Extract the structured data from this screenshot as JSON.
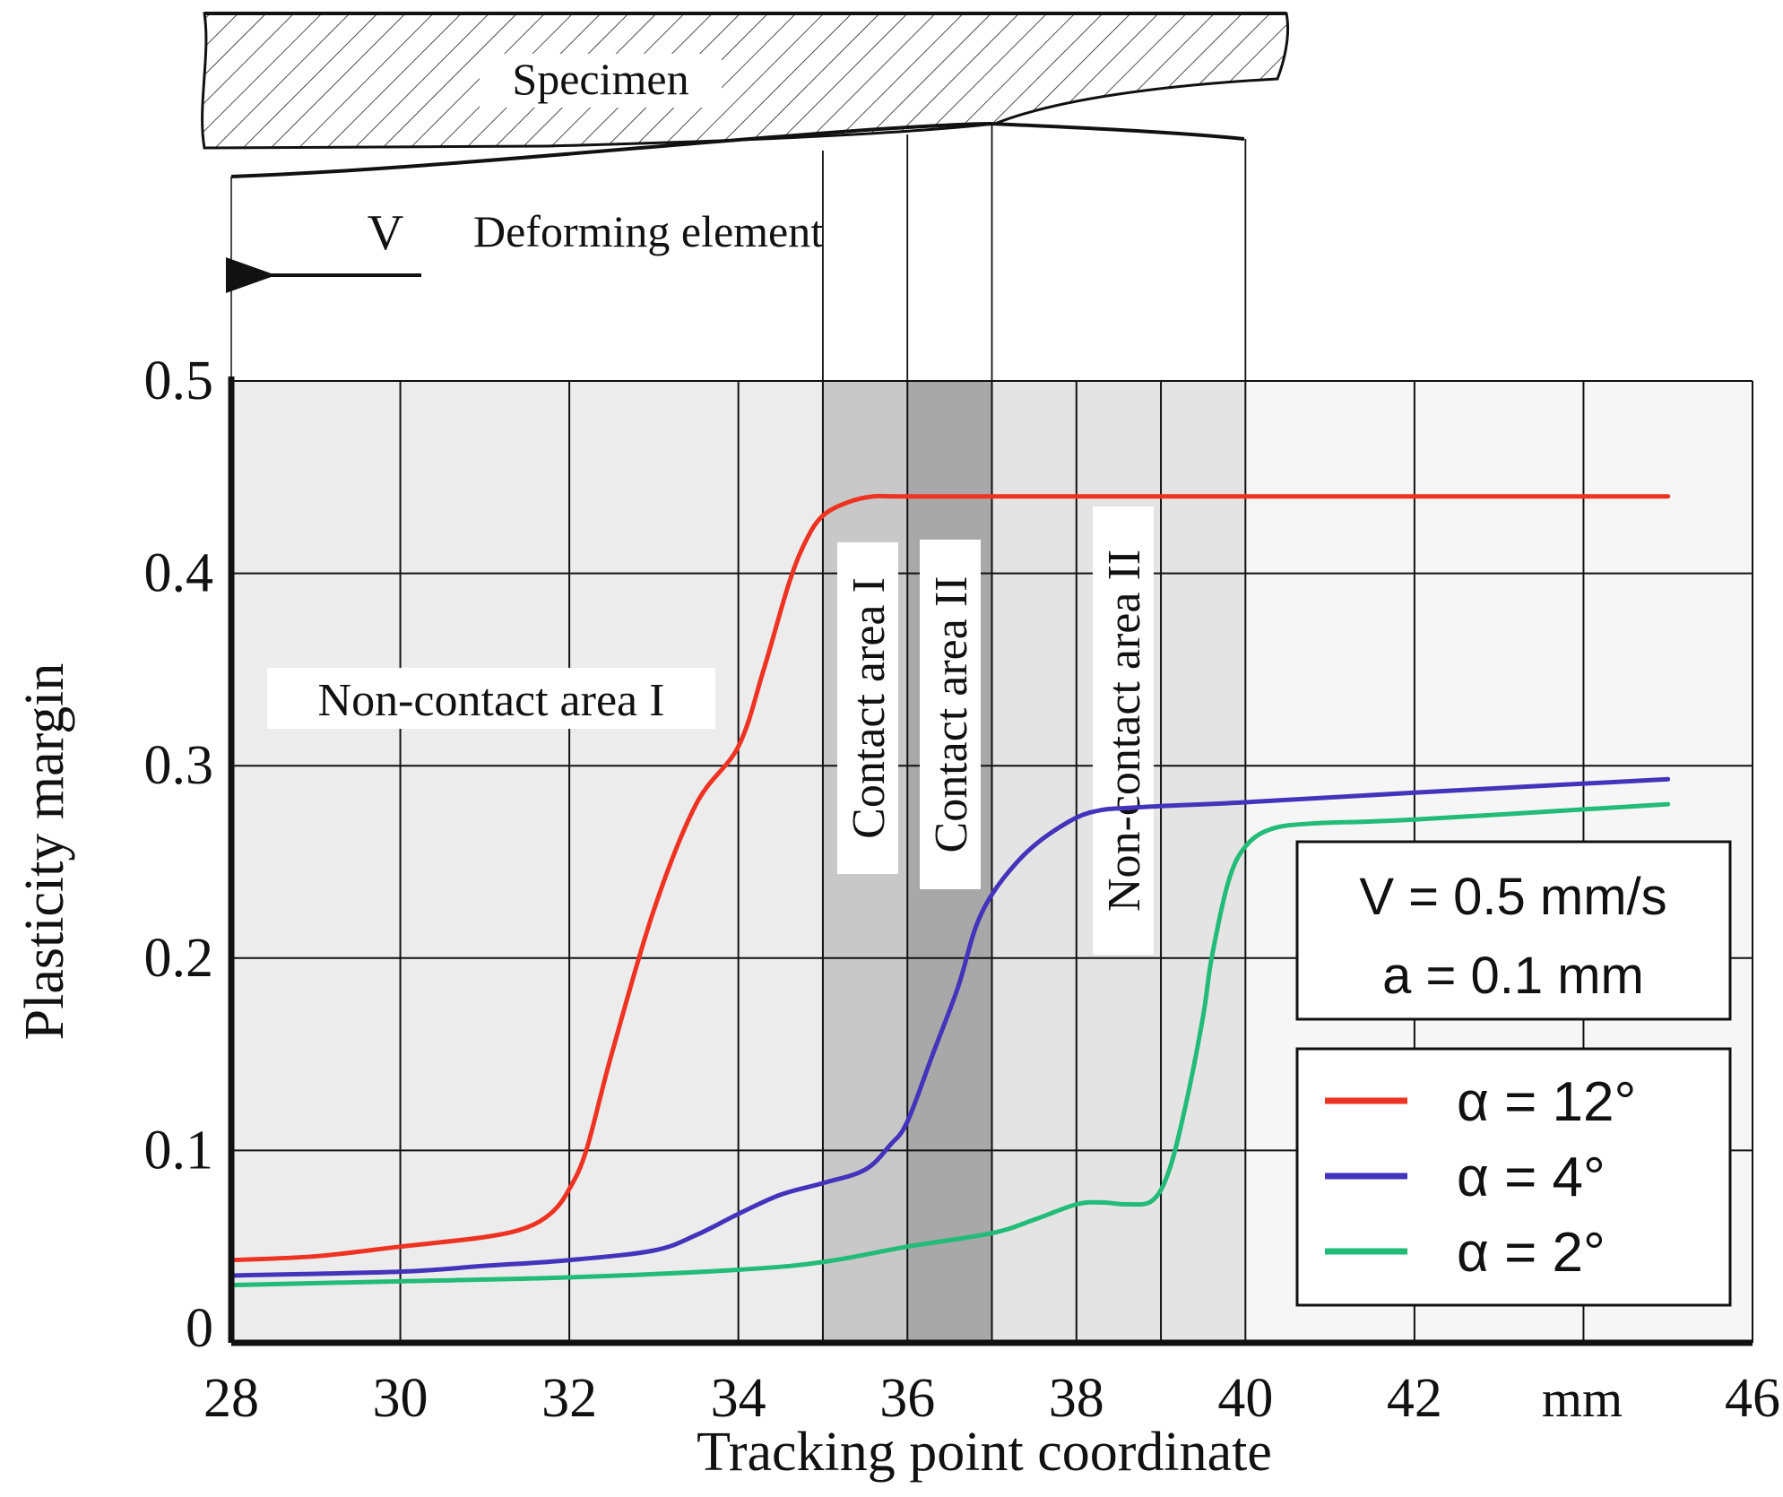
{
  "chart_data": {
    "type": "line",
    "xlabel": "Tracking point coordinate",
    "x_unit_label": "mm",
    "ylabel": "Plasticity margin",
    "xlim": [
      28,
      46
    ],
    "ylim": [
      0,
      0.5
    ],
    "x_ticks": [
      28,
      30,
      32,
      34,
      36,
      38,
      40,
      42,
      46
    ],
    "x_tick_labels": [
      "28",
      "30",
      "32",
      "34",
      "36",
      "38",
      "40",
      "42",
      "46"
    ],
    "y_ticks": [
      0,
      0.1,
      0.2,
      0.3,
      0.4,
      0.5
    ],
    "y_tick_labels": [
      "0",
      "0.1",
      "0.2",
      "0.3",
      "0.4",
      "0.5"
    ],
    "grid": true,
    "regions": [
      {
        "name": "Non-contact area I",
        "x_start": 28,
        "x_end": 35,
        "shade": "#ececec",
        "label_orientation": "horizontal"
      },
      {
        "name": "Contact area I",
        "x_start": 35,
        "x_end": 36,
        "shade": "#c8c8c8",
        "label_orientation": "vertical"
      },
      {
        "name": "Contact area II",
        "x_start": 36,
        "x_end": 37,
        "shade": "#a8a8a8",
        "label_orientation": "vertical"
      },
      {
        "name": "Non-contact area II",
        "x_start": 37,
        "x_end": 40,
        "shade": "#e4e4e4",
        "label_orientation": "vertical"
      }
    ],
    "parameters_box": [
      "V = 0.5 mm/s",
      "a = 0.1 mm"
    ],
    "legend_position": "lower-right",
    "series": [
      {
        "name": "α = 12°",
        "color": "#ee3322",
        "x": [
          28,
          29,
          30,
          31,
          31.5,
          31.8,
          32,
          32.2,
          32.5,
          33,
          33.5,
          34,
          34.3,
          34.6,
          34.8,
          35,
          35.3,
          35.6,
          36,
          38,
          40,
          42,
          45
        ],
        "y": [
          0.043,
          0.045,
          0.05,
          0.055,
          0.06,
          0.068,
          0.08,
          0.1,
          0.15,
          0.225,
          0.28,
          0.31,
          0.35,
          0.395,
          0.417,
          0.43,
          0.437,
          0.44,
          0.44,
          0.44,
          0.44,
          0.44,
          0.44
        ]
      },
      {
        "name": "α = 4°",
        "color": "#4433bb",
        "x": [
          28,
          30,
          31,
          32,
          33,
          33.5,
          34,
          34.5,
          35,
          35.5,
          35.8,
          36,
          36.3,
          36.6,
          36.8,
          37,
          37.3,
          37.6,
          38,
          38.3,
          38.6,
          39,
          40,
          42,
          45
        ],
        "y": [
          0.035,
          0.037,
          0.04,
          0.043,
          0.048,
          0.056,
          0.067,
          0.077,
          0.083,
          0.09,
          0.103,
          0.115,
          0.15,
          0.185,
          0.215,
          0.233,
          0.25,
          0.262,
          0.273,
          0.277,
          0.278,
          0.279,
          0.281,
          0.286,
          0.293
        ]
      },
      {
        "name": "α = 2°",
        "color": "#22bb77",
        "x": [
          28,
          30,
          32,
          34,
          35,
          36,
          37,
          37.5,
          38,
          38.3,
          38.6,
          38.9,
          39.1,
          39.3,
          39.5,
          39.6,
          39.8,
          40,
          40.3,
          40.8,
          42,
          45
        ],
        "y": [
          0.03,
          0.032,
          0.034,
          0.038,
          0.042,
          0.05,
          0.057,
          0.064,
          0.072,
          0.073,
          0.072,
          0.074,
          0.09,
          0.125,
          0.17,
          0.2,
          0.24,
          0.258,
          0.267,
          0.27,
          0.272,
          0.28
        ]
      }
    ]
  },
  "diagram": {
    "specimen_label": "Specimen",
    "element_label": "Deforming element",
    "velocity_label": "V"
  }
}
